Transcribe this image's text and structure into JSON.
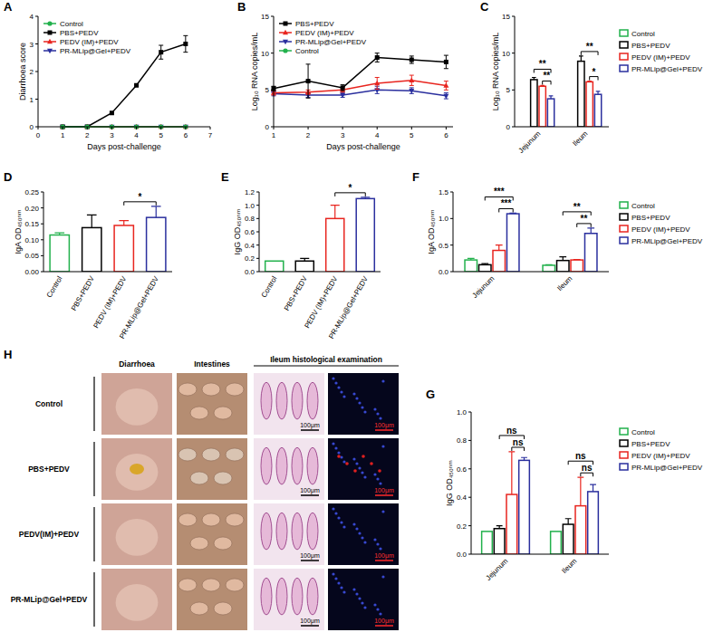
{
  "chart_data": [
    {
      "letter": "A",
      "type": "line",
      "x": [
        1,
        2,
        3,
        4,
        5,
        6
      ],
      "xlim": [
        0,
        7
      ],
      "xticks": [
        0,
        1,
        2,
        3,
        4,
        5,
        6,
        7
      ],
      "ylim": [
        0,
        4
      ],
      "yticks": [
        0,
        1,
        2,
        3,
        4
      ],
      "x_label": "Days post-challenge",
      "y_label": "Diarrhoea score",
      "legend": "upper left",
      "series": [
        {
          "name": "Control",
          "color": "#22b14c",
          "marker": "circle",
          "values": [
            0,
            0,
            0,
            0,
            0,
            0
          ]
        },
        {
          "name": "PBS+PEDV",
          "color": "#000000",
          "marker": "square",
          "values": [
            0,
            0,
            0.5,
            1.5,
            2.7,
            3.0
          ],
          "errors": [
            0,
            0,
            0,
            0,
            0.25,
            0.3
          ]
        },
        {
          "name": "PEDV (IM)+PEDV",
          "color": "#e8251f",
          "marker": "triangle",
          "values": [
            0,
            0,
            0,
            0,
            0,
            0
          ]
        },
        {
          "name": "PR-MLip@Gel+PEDV",
          "color": "#2a2f9e",
          "marker": "triangle-down",
          "values": [
            0,
            0,
            0,
            0,
            0,
            0
          ]
        }
      ]
    },
    {
      "letter": "B",
      "type": "line",
      "x": [
        1,
        2,
        3,
        4,
        5,
        6
      ],
      "xlim": [
        1,
        6.2
      ],
      "xticks": [
        1,
        2,
        3,
        4,
        5,
        6
      ],
      "ylim": [
        0,
        15
      ],
      "yticks": [
        0,
        5,
        10,
        15
      ],
      "x_label": "Days post-challenge",
      "y_label": "Log₁₀ RNA copies/mL",
      "legend": "upper left",
      "series": [
        {
          "name": "PBS+PEDV",
          "color": "#000000",
          "marker": "square",
          "values": [
            5.2,
            6.2,
            5.3,
            9.4,
            9.1,
            8.8
          ],
          "errors": [
            0.3,
            2.3,
            0.4,
            0.6,
            0.5,
            0.9
          ]
        },
        {
          "name": "PEDV (IM)+PEDV",
          "color": "#e8251f",
          "marker": "triangle",
          "values": [
            4.6,
            4.7,
            5.0,
            5.9,
            6.3,
            5.6
          ],
          "errors": [
            0.3,
            0.3,
            0.3,
            0.8,
            0.7,
            0.6
          ]
        },
        {
          "name": "PR-MLip@Gel+PEDV",
          "color": "#2a2f9e",
          "marker": "triangle-down",
          "values": [
            4.5,
            4.3,
            4.3,
            5.0,
            4.9,
            4.2
          ],
          "errors": [
            0.3,
            0.3,
            0.3,
            0.5,
            0.4,
            0.4
          ]
        },
        {
          "name": "Control",
          "color": "#22b14c",
          "marker": "circle",
          "values": [
            null,
            null,
            null,
            null,
            null,
            null
          ]
        }
      ]
    },
    {
      "letter": "C",
      "type": "bar",
      "categories": [
        "Jejunum",
        "Ileum"
      ],
      "ylim": [
        0,
        15
      ],
      "yticks": [
        0,
        5,
        10,
        15
      ],
      "y_label": "Log₁₀ RNA copies/mL",
      "legend": "right",
      "series": [
        {
          "name": "Control",
          "color": "#22b14c",
          "values": [
            0,
            0
          ],
          "errors": [
            0,
            0
          ]
        },
        {
          "name": "PBS+PEDV",
          "color": "#000000",
          "values": [
            6.4,
            8.9
          ],
          "errors": [
            0.3,
            0.7
          ]
        },
        {
          "name": "PEDV (IM)+PEDV",
          "color": "#e8251f",
          "values": [
            5.5,
            6.1
          ],
          "errors": [
            0.1,
            0.1
          ]
        },
        {
          "name": "PR-MLip@Gel+PEDV",
          "color": "#2a2f9e",
          "values": [
            3.8,
            4.4
          ],
          "errors": [
            0.4,
            0.4
          ]
        }
      ],
      "annotations": [
        {
          "category": "Jejunum",
          "from": "PEDV (IM)+PEDV",
          "to": "PR-MLip@Gel+PEDV",
          "label": "**"
        },
        {
          "category": "Jejunum",
          "from": "PBS+PEDV",
          "to": "PR-MLip@Gel+PEDV",
          "label": "**"
        },
        {
          "category": "Ileum",
          "from": "PEDV (IM)+PEDV",
          "to": "PR-MLip@Gel+PEDV",
          "label": "*"
        },
        {
          "category": "Ileum",
          "from": "PBS+PEDV",
          "to": "PR-MLip@Gel+PEDV",
          "label": "**"
        }
      ]
    },
    {
      "letter": "D",
      "type": "bar",
      "categories": [
        "Control",
        "PBS+PEDV",
        "PEDV (IM)+PEDV",
        "PR-MLip@Gel+PEDV"
      ],
      "values": [
        0.115,
        0.138,
        0.145,
        0.17
      ],
      "errors": [
        0.007,
        0.04,
        0.015,
        0.035
      ],
      "colors": [
        "#22b14c",
        "#000000",
        "#e8251f",
        "#2a2f9e"
      ],
      "ylim": [
        0,
        0.25
      ],
      "yticks": [
        {
          "value": 0,
          "label": "0.00"
        },
        0.05,
        {
          "value": 0.1,
          "label": "0.10"
        },
        0.15,
        {
          "value": 0.2,
          "label": "0.20"
        },
        0.25
      ],
      "y_label": "IgA OD₄₅₀ₙₘ",
      "annotations": [
        {
          "from": "PEDV (IM)+PEDV",
          "to": "PR-MLip@Gel+PEDV",
          "label": "*"
        }
      ]
    },
    {
      "letter": "E",
      "type": "bar",
      "categories": [
        "Control",
        "PBS+PEDV",
        "PEDV (IM)+PEDV",
        "PR-MLip@Gel+PEDV"
      ],
      "values": [
        0.16,
        0.16,
        0.8,
        1.1
      ],
      "errors": [
        0,
        0.04,
        0.2,
        0.02
      ],
      "colors": [
        "#22b14c",
        "#000000",
        "#e8251f",
        "#2a2f9e"
      ],
      "ylim": [
        0,
        1.2
      ],
      "yticks": [
        {
          "value": 0,
          "label": "0.0"
        },
        0.2,
        0.4,
        0.6,
        0.8,
        {
          "value": 1,
          "label": "1.0"
        },
        1.2
      ],
      "y_label": "IgG OD₄₅₀ₙₘ",
      "annotations": [
        {
          "from": "PEDV (IM)+PEDV",
          "to": "PR-MLip@Gel+PEDV",
          "label": "*"
        }
      ]
    },
    {
      "letter": "F",
      "type": "bar",
      "categories": [
        "Jejunum",
        "Ileum"
      ],
      "ylim": [
        0,
        1.5
      ],
      "yticks": [
        {
          "value": 0,
          "label": "0.0"
        },
        0.5,
        {
          "value": 1,
          "label": "1.0"
        },
        1.5
      ],
      "y_label": "IgA OD₄₅₀ₙₘ",
      "legend": "right",
      "series": [
        {
          "name": "Control",
          "color": "#22b14c",
          "values": [
            0.22,
            0.12
          ],
          "errors": [
            0.03,
            0.01
          ]
        },
        {
          "name": "PBS+PEDV",
          "color": "#000000",
          "values": [
            0.13,
            0.21
          ],
          "errors": [
            0.02,
            0.07
          ]
        },
        {
          "name": "PEDV (IM)+PEDV",
          "color": "#e8251f",
          "values": [
            0.4,
            0.22
          ],
          "errors": [
            0.1,
            0.01
          ]
        },
        {
          "name": "PR-MLip@Gel+PEDV",
          "color": "#2a2f9e",
          "values": [
            1.09,
            0.72
          ],
          "errors": [
            0.01,
            0.1
          ]
        }
      ],
      "annotations": [
        {
          "category": "Jejunum",
          "from": "PEDV (IM)+PEDV",
          "to": "PR-MLip@Gel+PEDV",
          "label": "***"
        },
        {
          "category": "Jejunum",
          "from": "PBS+PEDV",
          "to": "PR-MLip@Gel+PEDV",
          "label": "***"
        },
        {
          "category": "Ileum",
          "from": "PEDV (IM)+PEDV",
          "to": "PR-MLip@Gel+PEDV",
          "label": "**"
        },
        {
          "category": "Ileum",
          "from": "PBS+PEDV",
          "to": "PR-MLip@Gel+PEDV",
          "label": "**"
        }
      ]
    },
    {
      "letter": "G",
      "type": "bar",
      "categories": [
        "Jejunum",
        "Ileum"
      ],
      "ylim": [
        0,
        1
      ],
      "yticks": [
        {
          "value": 0,
          "label": "0.0"
        },
        0.2,
        0.4,
        0.6,
        0.8,
        {
          "value": 1,
          "label": "1.0"
        }
      ],
      "y_label": "IgG OD₄₅₀ₙₘ",
      "legend": "right",
      "series": [
        {
          "name": "Control",
          "color": "#22b14c",
          "values": [
            0.16,
            0.16
          ],
          "errors": [
            0,
            0
          ]
        },
        {
          "name": "PBS+PEDV",
          "color": "#000000",
          "values": [
            0.18,
            0.21
          ],
          "errors": [
            0.02,
            0.04
          ]
        },
        {
          "name": "PEDV (IM)+PEDV",
          "color": "#e8251f",
          "values": [
            0.42,
            0.34
          ],
          "errors": [
            0.3,
            0.2
          ]
        },
        {
          "name": "PR-MLip@Gel+PEDV",
          "color": "#2a2f9e",
          "values": [
            0.66,
            0.44
          ],
          "errors": [
            0.02,
            0.05
          ]
        }
      ],
      "annotations": [
        {
          "category": "Jejunum",
          "from": "PEDV (IM)+PEDV",
          "to": "PR-MLip@Gel+PEDV",
          "label": "ns"
        },
        {
          "category": "Jejunum",
          "from": "PBS+PEDV",
          "to": "PR-MLip@Gel+PEDV",
          "label": "ns"
        },
        {
          "category": "Ileum",
          "from": "PEDV (IM)+PEDV",
          "to": "PR-MLip@Gel+PEDV",
          "label": "ns"
        },
        {
          "category": "Ileum",
          "from": "PBS+PEDV",
          "to": "PR-MLip@Gel+PEDV",
          "label": "ns"
        }
      ]
    }
  ],
  "panel_h": {
    "letter": "H",
    "columns": [
      "Diarrhoea",
      "Intestines",
      "Ileum histological examination"
    ],
    "rows": [
      "Control",
      "PBS+PEDV",
      "PEDV(IM)+PEDV",
      "PR-MLip@Gel+PEDV"
    ],
    "scale_bar": "100μm"
  }
}
